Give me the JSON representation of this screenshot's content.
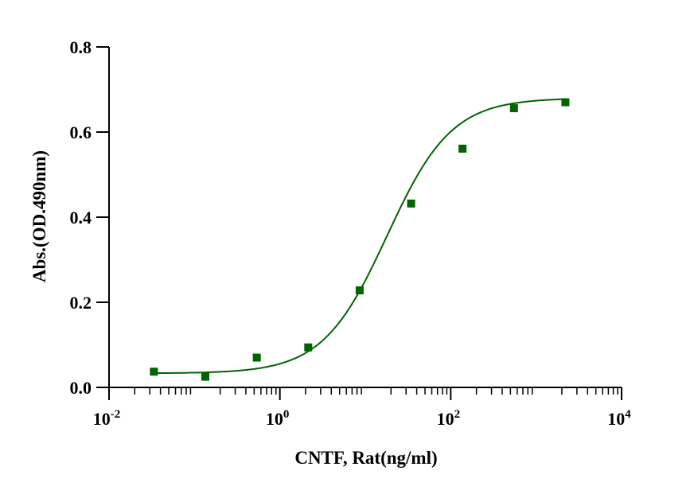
{
  "chart_data": {
    "type": "scatter",
    "title": "",
    "xlabel": "CNTF, Rat(ng/ml)",
    "ylabel": "Abs.(OD.490nm)",
    "xscale": "log",
    "xlim": [
      0.01,
      10000
    ],
    "ylim": [
      0,
      0.8
    ],
    "grid": false,
    "legend": "none",
    "x_ticks": [
      {
        "base": "10",
        "exp": "-2",
        "value": 0.01
      },
      {
        "base": "10",
        "exp": "0",
        "value": 1
      },
      {
        "base": "10",
        "exp": "2",
        "value": 100
      },
      {
        "base": "10",
        "exp": "4",
        "value": 10000
      }
    ],
    "y_ticks": [
      {
        "label": "0.0",
        "value": 0
      },
      {
        "label": "0.2",
        "value": 0.2
      },
      {
        "label": "0.4",
        "value": 0.4
      },
      {
        "label": "0.6",
        "value": 0.6
      },
      {
        "label": "0.8",
        "value": 0.8
      }
    ],
    "series": [
      {
        "color": "#006400",
        "marker": "square",
        "fit": "four-parameter logistic",
        "points": [
          {
            "x": 0.0335,
            "y": 0.037
          },
          {
            "x": 0.134,
            "y": 0.025
          },
          {
            "x": 0.537,
            "y": 0.07
          },
          {
            "x": 2.148,
            "y": 0.094
          },
          {
            "x": 8.59,
            "y": 0.228
          },
          {
            "x": 34.4,
            "y": 0.432
          },
          {
            "x": 137.4,
            "y": 0.561
          },
          {
            "x": 550,
            "y": 0.656
          },
          {
            "x": 2200,
            "y": 0.67
          }
        ]
      }
    ]
  }
}
